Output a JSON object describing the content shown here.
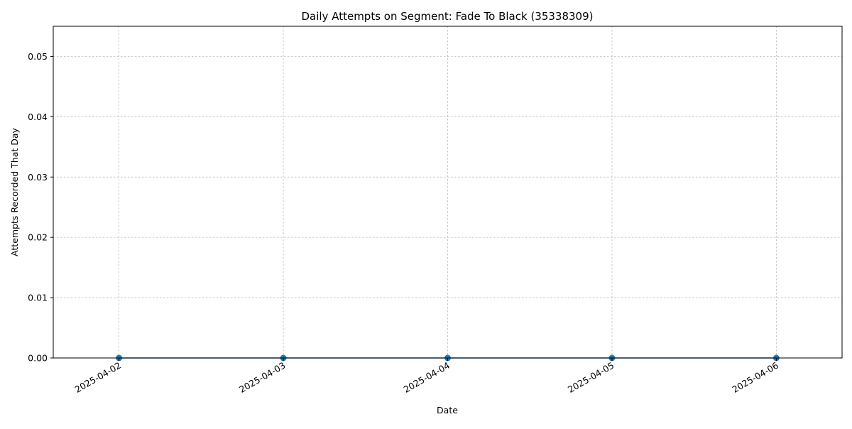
{
  "chart_data": {
    "type": "line",
    "title": "Daily Attempts on Segment: Fade To Black (35338309)",
    "xlabel": "Date",
    "ylabel": "Attempts Recorded That Day",
    "x": [
      "2025-04-02",
      "2025-04-03",
      "2025-04-04",
      "2025-04-05",
      "2025-04-06"
    ],
    "series": [
      {
        "values": [
          0,
          0,
          0,
          0,
          0
        ],
        "color": "#1f77b4",
        "marker": "circle"
      }
    ],
    "xlim": [
      "2025-04-01 14:24",
      "2025-04-06 09:36"
    ],
    "ylim": [
      0,
      0.055
    ],
    "yticks": [
      0.0,
      0.01,
      0.02,
      0.03,
      0.04,
      0.05
    ],
    "ytick_labels": [
      "0.00",
      "0.01",
      "0.02",
      "0.03",
      "0.04",
      "0.05"
    ],
    "xtick_labels": [
      "2025-04-02",
      "2025-04-03",
      "2025-04-04",
      "2025-04-05",
      "2025-04-06"
    ],
    "grid": true,
    "legend": "none"
  }
}
